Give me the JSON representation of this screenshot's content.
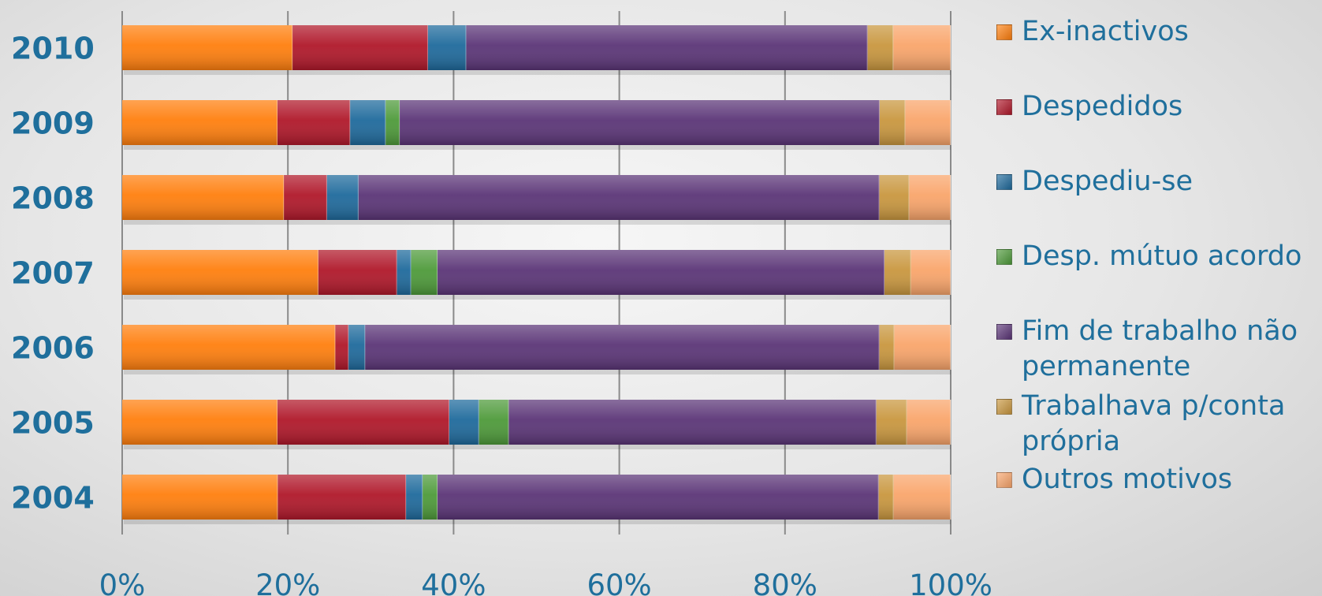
{
  "chart_data": {
    "type": "bar",
    "orientation": "horizontal",
    "stacked": "percent",
    "categories": [
      "2010",
      "2009",
      "2008",
      "2007",
      "2006",
      "2005",
      "2004"
    ],
    "series": [
      {
        "name": "Ex-inactivos",
        "color": "#ff7f0e",
        "values": [
          20.5,
          18.8,
          19.5,
          23.7,
          25.7,
          18.8,
          18.8
        ]
      },
      {
        "name": "Despedidos",
        "color": "#b0182a",
        "values": [
          16.3,
          8.8,
          5.2,
          9.5,
          1.6,
          20.8,
          15.5
        ]
      },
      {
        "name": "Despediu-se",
        "color": "#1f6a9c",
        "values": [
          4.6,
          4.3,
          3.8,
          1.7,
          2.0,
          3.6,
          2.0
        ]
      },
      {
        "name": "Desp. mútuo acordo",
        "color": "#4e9a3a",
        "values": [
          0,
          1.7,
          0,
          3.2,
          0,
          3.6,
          1.8
        ]
      },
      {
        "name": "Fim de trabalho não permanente",
        "color": "#5b3577",
        "values": [
          48.3,
          58.1,
          62.8,
          54.0,
          62.0,
          44.5,
          53.3
        ]
      },
      {
        "name": "Trabalhava p/conta própria",
        "color": "#c9973f",
        "values": [
          3.1,
          3.1,
          3.6,
          3.2,
          1.8,
          3.7,
          1.8
        ]
      },
      {
        "name": "Outros motivos",
        "color": "#f9a56b",
        "values": [
          6.9,
          5.5,
          5.0,
          4.8,
          6.8,
          5.3,
          6.9
        ]
      }
    ],
    "xticks": [
      "0%",
      "20%",
      "40%",
      "60%",
      "80%",
      "100%"
    ],
    "xlim": [
      0,
      100
    ],
    "grid": true,
    "legend_position": "right"
  },
  "legend": {
    "items": [
      {
        "lines": [
          "Ex-inactivos"
        ]
      },
      {
        "lines": [
          "Despedidos"
        ]
      },
      {
        "lines": [
          "Despediu-se"
        ]
      },
      {
        "lines": [
          "Desp. mútuo acordo"
        ]
      },
      {
        "lines": [
          "Fim de trabalho não",
          "permanente"
        ]
      },
      {
        "lines": [
          "Trabalhava p/conta",
          "própria"
        ]
      },
      {
        "lines": [
          "Outros motivos"
        ]
      }
    ]
  }
}
